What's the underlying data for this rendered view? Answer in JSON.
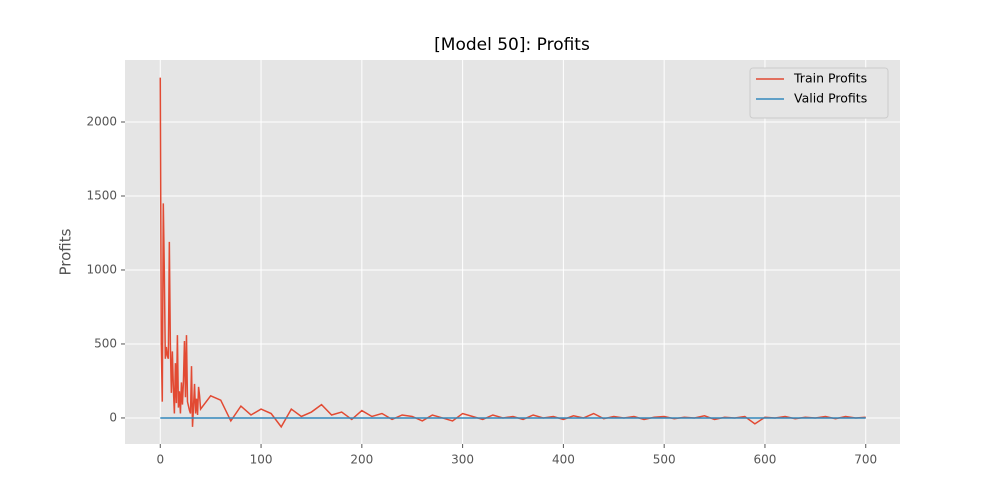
{
  "chart_data": {
    "type": "line",
    "title": "[Model 50]: Profits",
    "y_label": "Profits",
    "x": [
      0,
      1,
      2,
      3,
      4,
      5,
      6,
      7,
      8,
      9,
      10,
      11,
      12,
      13,
      14,
      15,
      16,
      17,
      18,
      19,
      20,
      21,
      22,
      23,
      24,
      25,
      26,
      27,
      28,
      29,
      30,
      31,
      32,
      33,
      34,
      35,
      36,
      37,
      38,
      39,
      40,
      50,
      60,
      70,
      80,
      90,
      100,
      110,
      120,
      130,
      140,
      150,
      160,
      170,
      180,
      190,
      200,
      210,
      220,
      230,
      240,
      250,
      260,
      270,
      280,
      290,
      300,
      310,
      320,
      330,
      340,
      350,
      360,
      370,
      380,
      390,
      400,
      410,
      420,
      430,
      440,
      450,
      460,
      470,
      480,
      490,
      500,
      510,
      520,
      530,
      540,
      550,
      560,
      570,
      580,
      590,
      600,
      610,
      620,
      630,
      640,
      650,
      660,
      670,
      680,
      690,
      700
    ],
    "series": [
      {
        "name": "Train Profits",
        "color": "#E24A33",
        "values": [
          2300,
          500,
          110,
          1450,
          1000,
          400,
          480,
          420,
          400,
          1190,
          500,
          170,
          450,
          200,
          30,
          370,
          100,
          560,
          70,
          180,
          30,
          240,
          90,
          250,
          520,
          140,
          560,
          110,
          80,
          50,
          30,
          350,
          -60,
          80,
          230,
          30,
          130,
          20,
          210,
          150,
          60,
          150,
          120,
          -20,
          80,
          20,
          60,
          30,
          -60,
          60,
          10,
          40,
          90,
          20,
          40,
          -10,
          50,
          10,
          30,
          -10,
          20,
          10,
          -20,
          20,
          0,
          -20,
          30,
          10,
          -10,
          20,
          0,
          10,
          -10,
          20,
          0,
          10,
          -10,
          15,
          0,
          30,
          -5,
          10,
          0,
          10,
          -10,
          5,
          10,
          -5,
          5,
          0,
          15,
          -10,
          5,
          0,
          10,
          -40,
          5,
          0,
          10,
          -5,
          5,
          0,
          10,
          -5,
          10,
          0,
          5
        ]
      },
      {
        "name": "Valid Profits",
        "color": "#348ABD",
        "values": [
          0,
          0,
          0,
          0,
          0,
          0,
          0,
          0,
          0,
          0,
          0,
          0,
          0,
          0,
          0,
          0,
          0,
          0,
          0,
          0,
          0,
          0,
          0,
          0,
          0,
          0,
          0,
          0,
          0,
          0,
          0,
          0,
          0,
          0,
          0,
          0,
          0,
          0,
          0,
          0,
          0,
          0,
          0,
          0,
          0,
          0,
          0,
          0,
          0,
          0,
          0,
          0,
          0,
          0,
          0,
          0,
          0,
          0,
          0,
          0,
          0,
          0,
          0,
          0,
          0,
          0,
          0,
          0,
          0,
          0,
          0,
          0,
          0,
          0,
          0,
          0,
          0,
          0,
          0,
          0,
          0,
          0,
          0,
          0,
          0,
          0,
          0,
          0,
          0,
          0,
          0,
          0,
          0,
          0,
          0,
          0,
          0,
          0,
          0,
          0,
          0,
          0,
          0,
          0,
          0,
          0,
          0
        ]
      }
    ],
    "xlim": [
      -35,
      734
    ],
    "ylim": [
      -176,
      2419
    ],
    "xticks": [
      0,
      100,
      200,
      300,
      400,
      500,
      600,
      700
    ],
    "yticks": [
      0,
      500,
      1000,
      1500,
      2000
    ],
    "grid": true,
    "legend": "upper right"
  }
}
